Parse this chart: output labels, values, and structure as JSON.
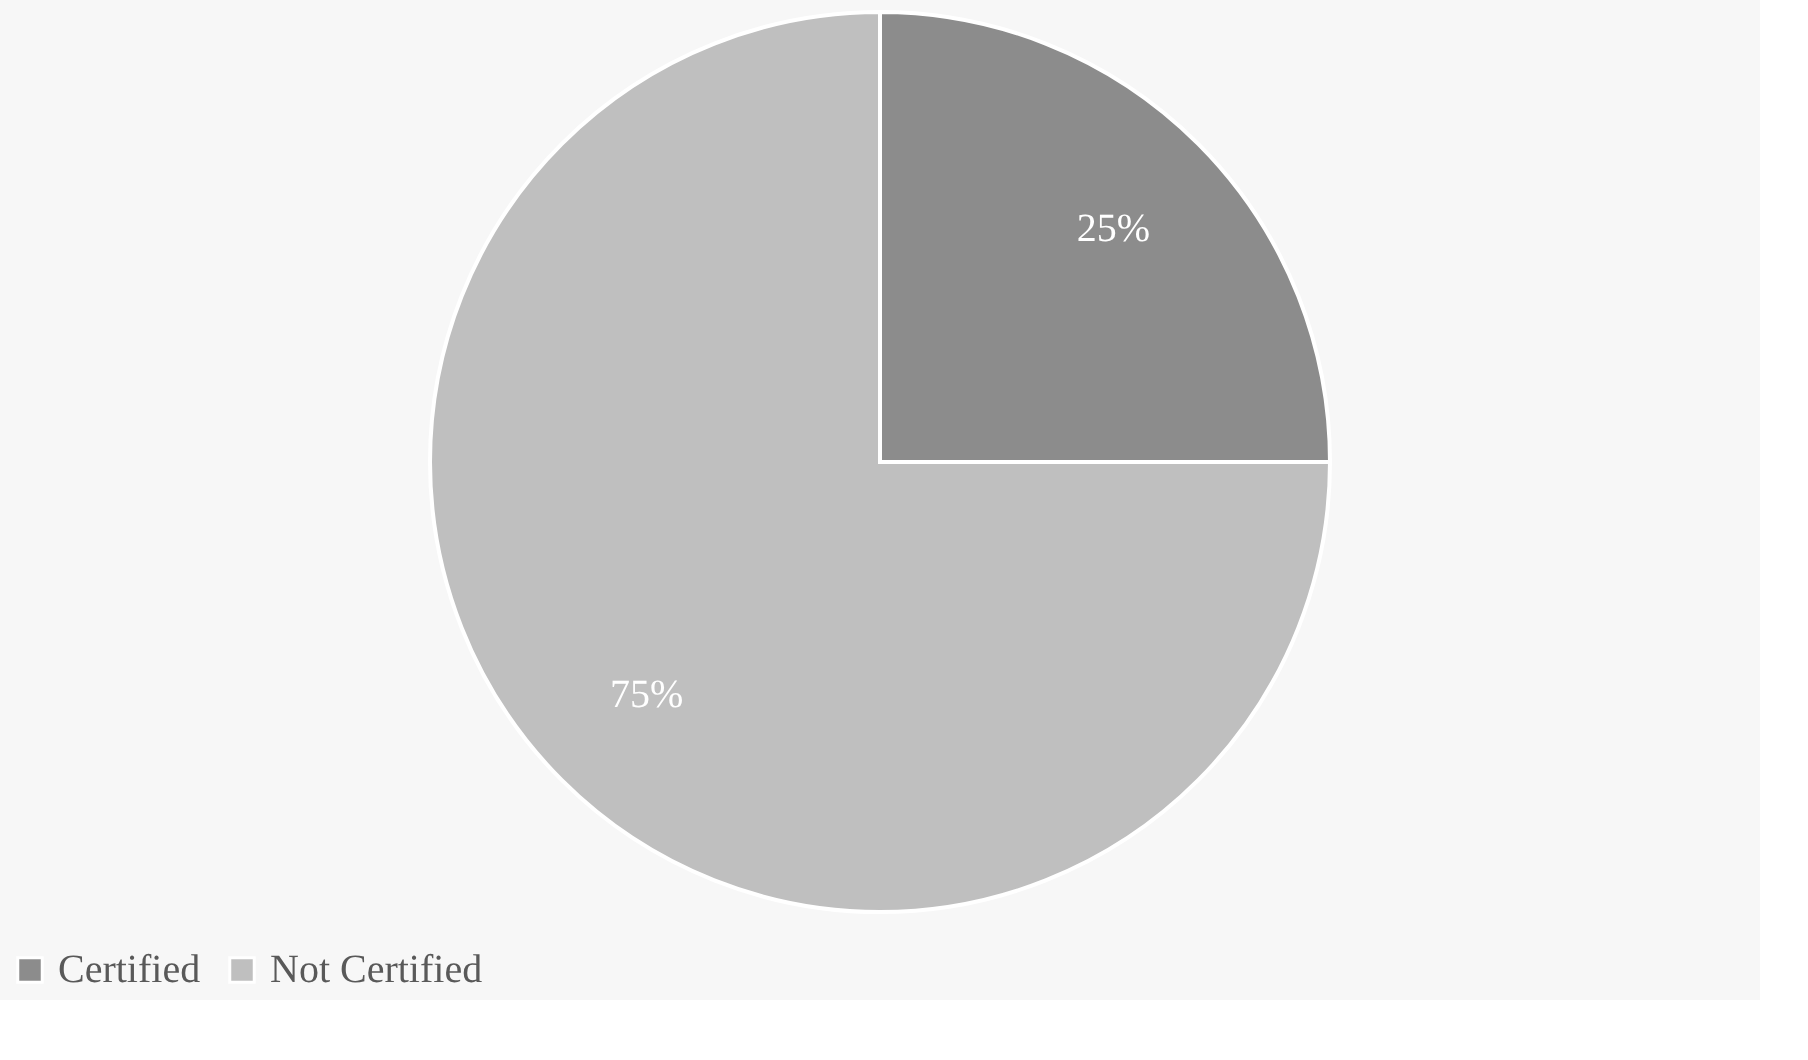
{
  "chart_data": {
    "type": "pie",
    "categories": [
      "Certified",
      "Not Certified"
    ],
    "values": [
      25,
      75
    ],
    "colors": [
      "#8c8c8c",
      "#bfbfbf"
    ],
    "value_labels": [
      "25%",
      "75%"
    ],
    "legend": "bottom"
  }
}
